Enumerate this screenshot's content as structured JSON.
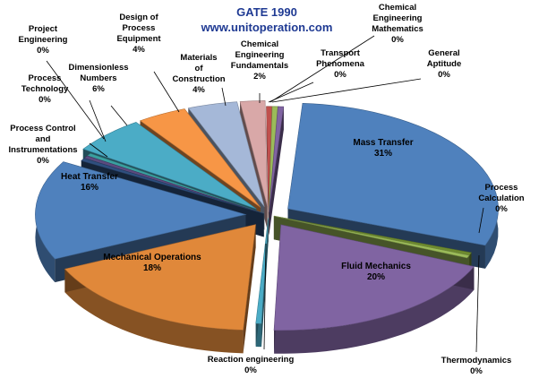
{
  "chart_data": {
    "type": "pie",
    "title": "GATE 1990",
    "subtitle": "www.unitoperation.com",
    "slices": [
      {
        "label": "Mass Transfer",
        "value": 31,
        "value_label": "31%",
        "color": "#4f81bd"
      },
      {
        "label": "Process Calculation",
        "value": 0,
        "value_label": "0%",
        "color": "#6e8b2f"
      },
      {
        "label": "Thermodynamics",
        "value": 0,
        "value_label": "0%",
        "color": "#9bbb59"
      },
      {
        "label": "Fluid Mechanics",
        "value": 20,
        "value_label": "20%",
        "color": "#8064a2"
      },
      {
        "label": "Reaction engineering",
        "value": 0,
        "value_label": "0%",
        "color": "#4bacc6"
      },
      {
        "label": "Mechanical  Operations",
        "value": 18,
        "value_label": "18%",
        "color": "#e0883a"
      },
      {
        "label": "Heat Transfer",
        "value": 16,
        "value_label": "16%",
        "color": "#4f81bd"
      },
      {
        "label": "Process Control and Instrumentations",
        "value": 0,
        "value_label": "0%",
        "color": "#2f4f7f"
      },
      {
        "label": "Process Technology",
        "value": 0,
        "value_label": "0%",
        "color": "#5b4a7f"
      },
      {
        "label": "Project Engineering",
        "value": 0,
        "value_label": "0%",
        "color": "#3aa0a0"
      },
      {
        "label": "Dimensionless Numbers",
        "value": 6,
        "value_label": "6%",
        "color": "#4bacc6"
      },
      {
        "label": "Design of Process Equipment",
        "value": 4,
        "value_label": "4%",
        "color": "#f79646"
      },
      {
        "label": "Materials of Construction",
        "value": 4,
        "value_label": "4%",
        "color": "#a5b8d8"
      },
      {
        "label": "Chemical Engineering Fundamentals",
        "value": 2,
        "value_label": "2%",
        "color": "#d9a8a8"
      },
      {
        "label": "Transport Phenomena",
        "value": 0,
        "value_label": "0%",
        "color": "#c0504d"
      },
      {
        "label": "Chemical Engineering Mathematics",
        "value": 0,
        "value_label": "0%",
        "color": "#9bbb59"
      },
      {
        "label": "General Aptitude",
        "value": 0,
        "value_label": "0%",
        "color": "#8064a2"
      }
    ]
  }
}
